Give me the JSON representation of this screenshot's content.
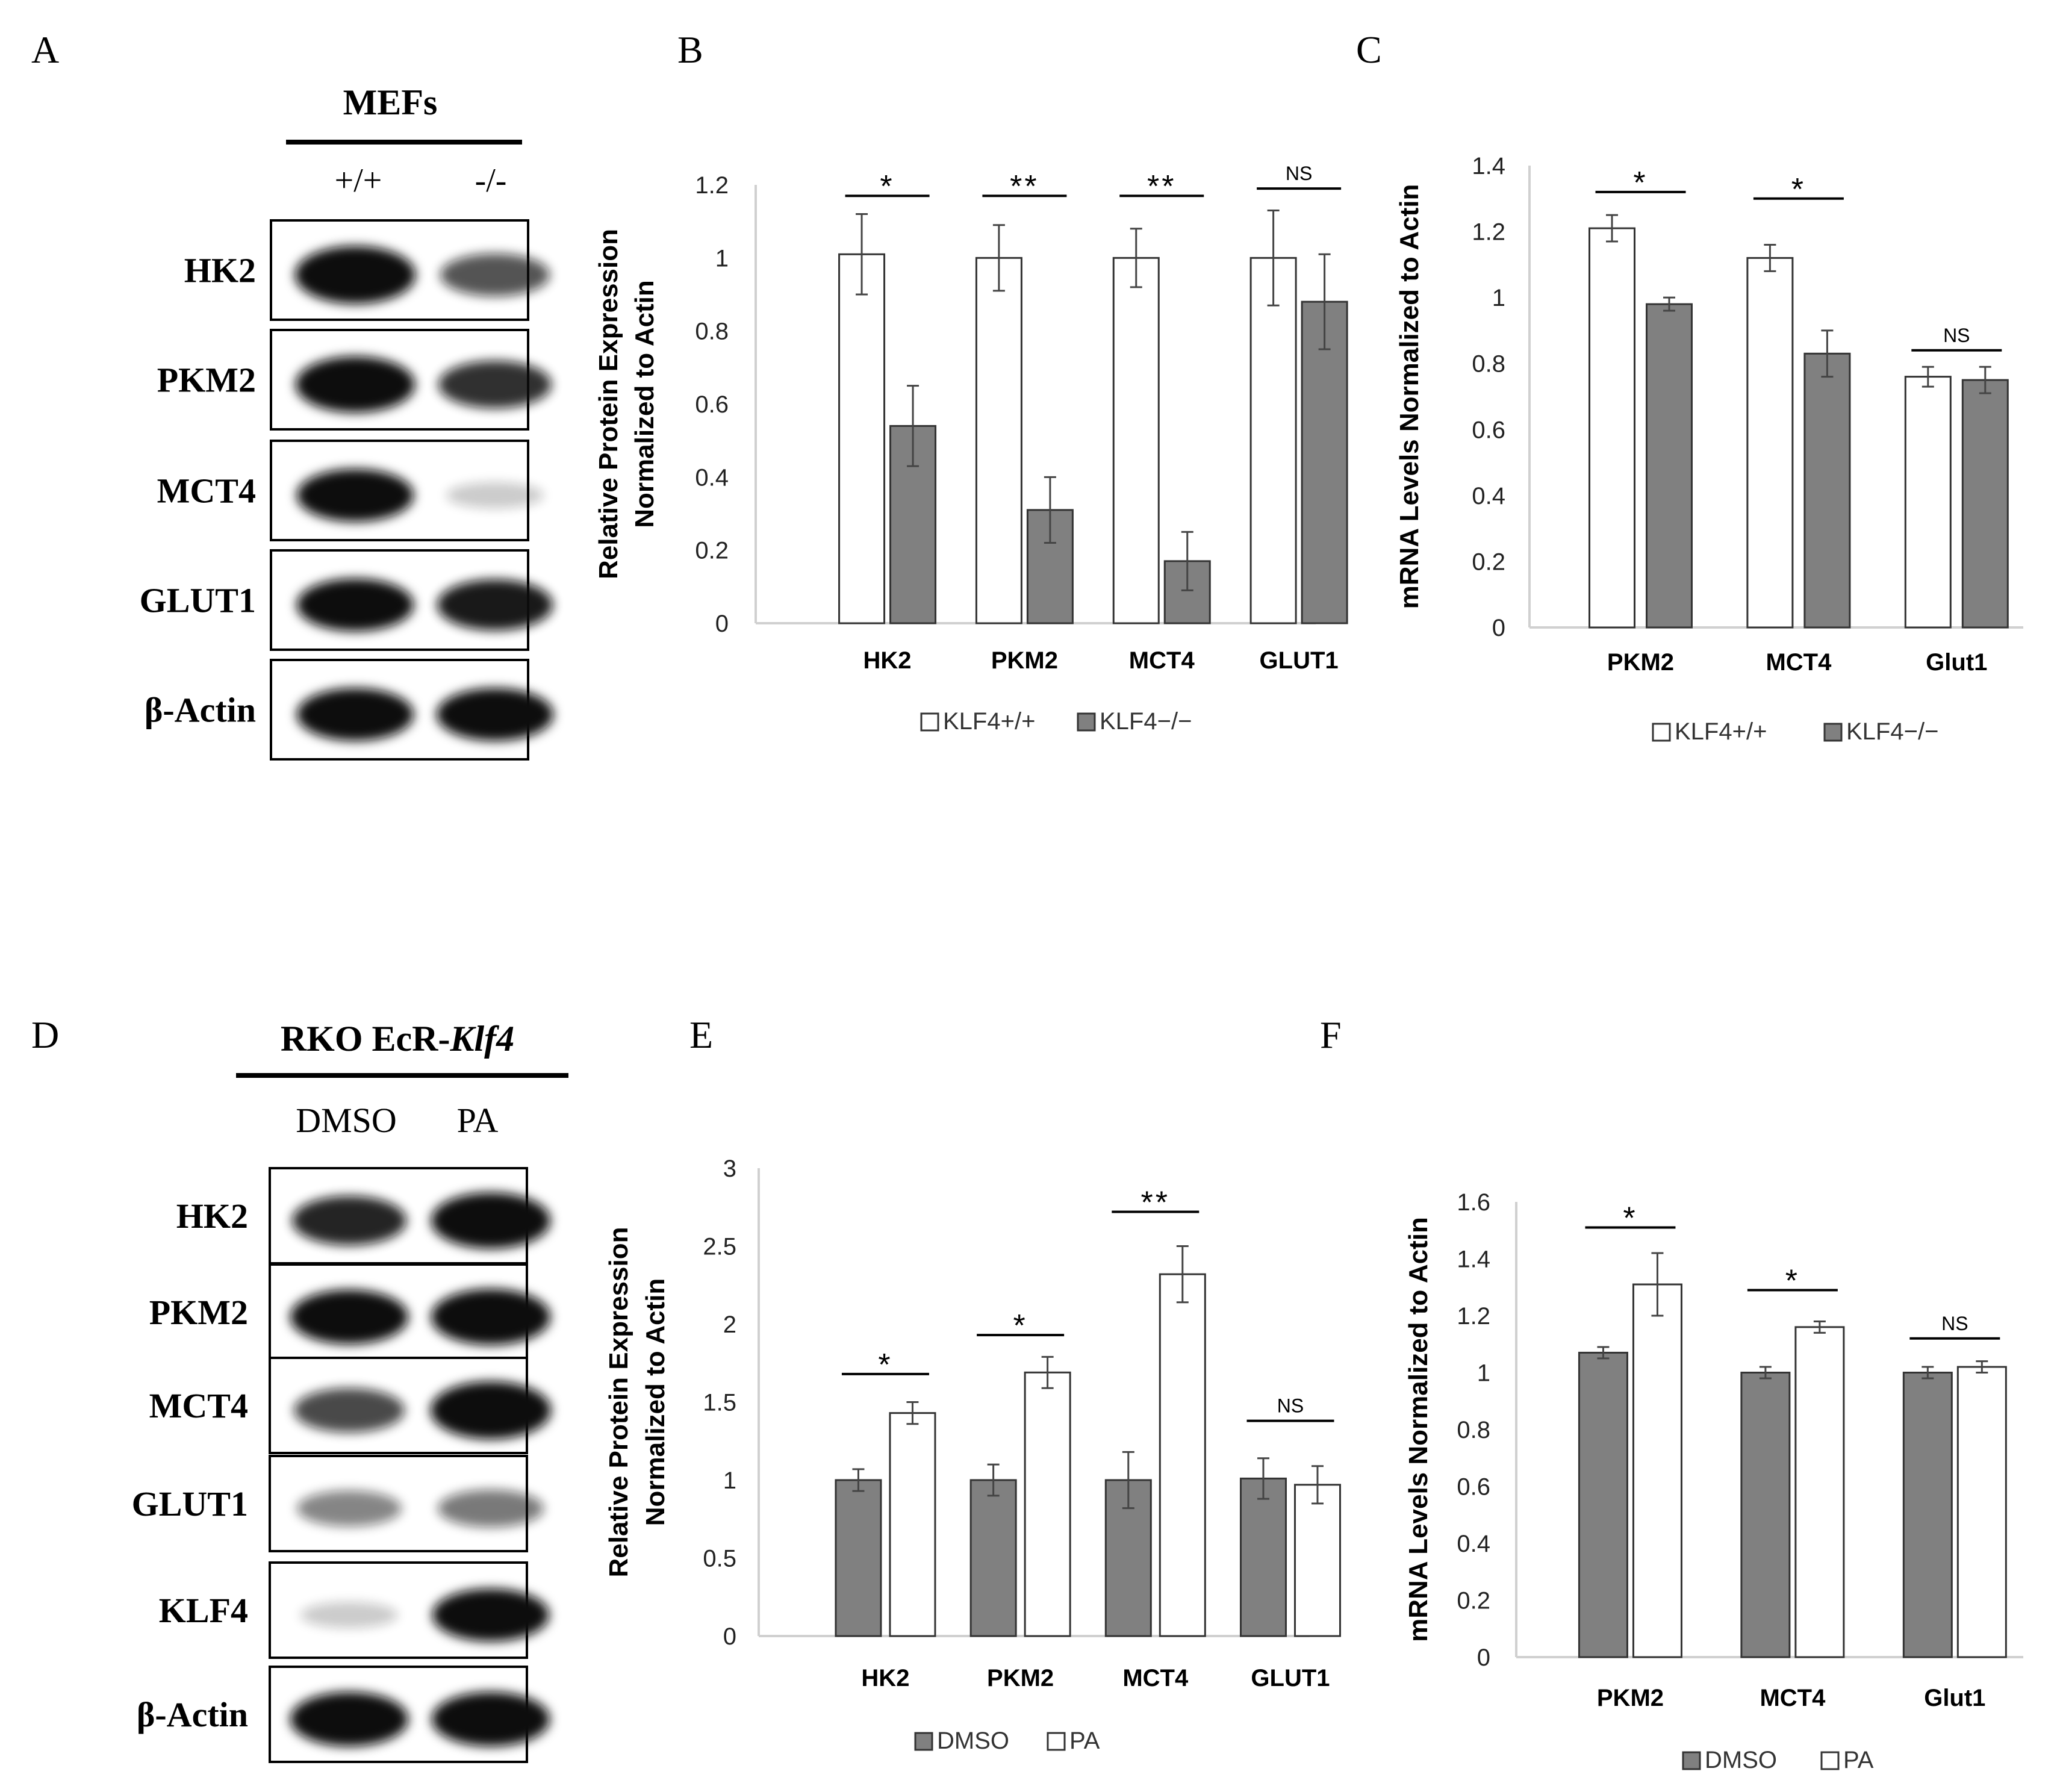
{
  "panel_letters": [
    "A",
    "B",
    "C",
    "D",
    "E",
    "F"
  ],
  "blot_a": {
    "header": "MEFs",
    "lanes": [
      "+/+",
      "-/-"
    ],
    "rows": [
      "HK2",
      "PKM2",
      "MCT4",
      "GLUT1",
      "β-Actin"
    ],
    "band_intensity": [
      [
        1.0,
        0.55
      ],
      [
        0.95,
        0.7
      ],
      [
        0.85,
        0.06
      ],
      [
        0.85,
        0.8
      ],
      [
        0.85,
        0.85
      ]
    ]
  },
  "blot_d": {
    "header_main": "RKO EcR-",
    "header_italic": "Klf4",
    "lanes": [
      "DMSO",
      "PA"
    ],
    "rows": [
      "HK2",
      "PKM2",
      "MCT4",
      "GLUT1",
      "KLF4",
      "β-Actin"
    ],
    "band_intensity": [
      [
        0.75,
        0.95
      ],
      [
        0.9,
        0.95
      ],
      [
        0.6,
        1.0
      ],
      [
        0.35,
        0.4
      ],
      [
        0.06,
        0.85
      ],
      [
        0.9,
        0.9
      ]
    ]
  },
  "chart_data": [
    {
      "id": "B",
      "type": "bar",
      "ylabel": "Relative Protein Expression Normalized to Actin",
      "ylabel_lines": [
        "Relative Protein Expression",
        "Normalized to Actin"
      ],
      "categories": [
        "HK2",
        "PKM2",
        "MCT4",
        "GLUT1"
      ],
      "series": [
        {
          "name": "KLF4+/+",
          "color": "#ffffff",
          "values": [
            1.01,
            1.0,
            1.0,
            1.0
          ],
          "errors": [
            0.11,
            0.09,
            0.08,
            0.13
          ]
        },
        {
          "name": "KLF4−/−",
          "color": "#808080",
          "values": [
            0.54,
            0.31,
            0.17,
            0.88
          ],
          "errors": [
            0.11,
            0.09,
            0.08,
            0.13
          ]
        }
      ],
      "ylim": [
        0,
        1.2
      ],
      "yticks": [
        "0",
        "0.2",
        "0.4",
        "0.6",
        "0.8",
        "1",
        "1.2"
      ],
      "significance": [
        "*",
        "**",
        "**",
        "NS"
      ],
      "sig_y": [
        1.17,
        1.17,
        1.17,
        1.19
      ],
      "legend": [
        "KLF4+/+",
        "KLF4−/−"
      ]
    },
    {
      "id": "C",
      "type": "bar",
      "ylabel": "mRNA  Levels Normalized to Actin",
      "ylabel_lines": [
        "mRNA  Levels Normalized to Actin"
      ],
      "categories": [
        "PKM2",
        "MCT4",
        "Glut1"
      ],
      "series": [
        {
          "name": "KLF4+/+",
          "color": "#ffffff",
          "values": [
            1.21,
            1.12,
            0.76
          ],
          "errors": [
            0.04,
            0.04,
            0.03
          ]
        },
        {
          "name": "KLF4−/−",
          "color": "#808080",
          "values": [
            0.98,
            0.83,
            0.75
          ],
          "errors": [
            0.02,
            0.07,
            0.04
          ]
        }
      ],
      "ylim": [
        0,
        1.4
      ],
      "yticks": [
        "0",
        "0.2",
        "0.4",
        "0.6",
        "0.8",
        "1",
        "1.2",
        "1.4"
      ],
      "significance": [
        "*",
        "*",
        "NS"
      ],
      "sig_y": [
        1.32,
        1.3,
        0.84
      ],
      "legend": [
        "KLF4+/+",
        "KLF4−/−"
      ]
    },
    {
      "id": "E",
      "type": "bar",
      "ylabel": "Relative Protein Expression Normalized to Actin",
      "ylabel_lines": [
        "Relative Protein Expression",
        "Normalized to Actin"
      ],
      "categories": [
        "HK2",
        "PKM2",
        "MCT4",
        "GLUT1"
      ],
      "series": [
        {
          "name": "DMSO",
          "color": "#808080",
          "values": [
            1.0,
            1.0,
            1.0,
            1.01
          ],
          "errors": [
            0.07,
            0.1,
            0.18,
            0.13
          ]
        },
        {
          "name": "PA",
          "color": "#ffffff",
          "values": [
            1.43,
            1.69,
            2.32,
            0.97
          ],
          "errors": [
            0.07,
            0.1,
            0.18,
            0.12
          ]
        }
      ],
      "ylim": [
        0,
        3
      ],
      "yticks": [
        "0",
        "0.5",
        "1",
        "1.5",
        "2",
        "2.5",
        "3"
      ],
      "significance": [
        "*",
        "*",
        "**",
        "NS"
      ],
      "sig_y": [
        1.68,
        1.93,
        2.72,
        1.38
      ],
      "legend": [
        "DMSO",
        "PA"
      ]
    },
    {
      "id": "F",
      "type": "bar",
      "ylabel": "mRNA Levels Normalized to Actin",
      "ylabel_lines": [
        "mRNA Levels Normalized to Actin"
      ],
      "categories": [
        "PKM2",
        "MCT4",
        "Glut1"
      ],
      "series": [
        {
          "name": "DMSO",
          "color": "#808080",
          "values": [
            1.07,
            1.0,
            1.0
          ],
          "errors": [
            0.02,
            0.02,
            0.02
          ]
        },
        {
          "name": "PA",
          "color": "#ffffff",
          "values": [
            1.31,
            1.16,
            1.02
          ],
          "errors": [
            0.11,
            0.02,
            0.02
          ]
        }
      ],
      "ylim": [
        0,
        1.6
      ],
      "yticks": [
        "0",
        "0.2",
        "0.4",
        "0.6",
        "0.8",
        "1",
        "1.2",
        "1.4",
        "1.6"
      ],
      "significance": [
        "*",
        "*",
        "NS"
      ],
      "sig_y": [
        1.51,
        1.29,
        1.12
      ],
      "legend": [
        "DMSO",
        "PA"
      ]
    }
  ]
}
